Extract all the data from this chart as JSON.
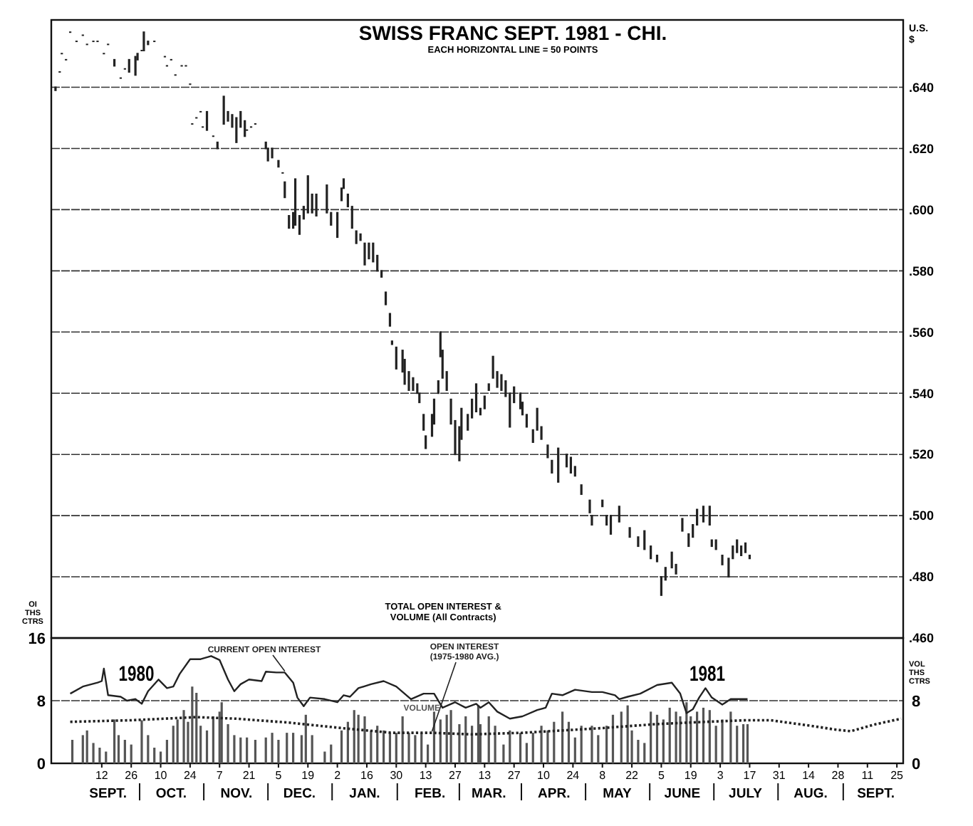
{
  "chart_data": [
    {
      "type": "candlestick",
      "title": "SWISS FRANC SEPT. 1981 - CHI.",
      "subtitle": "EACH HORIZONTAL LINE = 50 POINTS",
      "ylabel": "U.S. $",
      "color": "#222222",
      "xlim": [
        "1980-08-19",
        "1981-09-28"
      ],
      "ylim": [
        0.46,
        0.662
      ],
      "yticks": [
        {
          "value": 0.46,
          "label": ".460"
        },
        {
          "value": 0.48,
          "label": ".480"
        },
        {
          "value": 0.5,
          "label": ".500"
        },
        {
          "value": 0.52,
          "label": ".520"
        },
        {
          "value": 0.54,
          "label": ".540"
        },
        {
          "value": 0.56,
          "label": ".560"
        },
        {
          "value": 0.58,
          "label": ".580"
        },
        {
          "value": 0.6,
          "label": ".600"
        },
        {
          "value": 0.62,
          "label": ".620"
        },
        {
          "value": 0.64,
          "label": ".640"
        }
      ],
      "grid": "y",
      "tick_labels": "y",
      "x": [
        "1980-08-21",
        "1980-08-23",
        "1980-08-24",
        "1980-08-26",
        "1980-08-28",
        "1980-08-31",
        "1980-09-03",
        "1980-09-05",
        "1980-09-08",
        "1980-09-10",
        "1980-09-13",
        "1980-09-15",
        "1980-09-18",
        "1980-09-21",
        "1980-09-23",
        "1980-09-25",
        "1980-09-28",
        "1980-09-29",
        "1980-10-01",
        "1980-10-02",
        "1980-10-04",
        "1980-10-07",
        "1980-10-12",
        "1980-10-13",
        "1980-10-15",
        "1980-10-17",
        "1980-10-20",
        "1980-10-22",
        "1980-10-24",
        "1980-10-25",
        "1980-10-27",
        "1980-10-29",
        "1980-10-30",
        "1980-11-01",
        "1980-11-04",
        "1980-11-06",
        "1980-11-09",
        "1980-11-11",
        "1980-11-13",
        "1980-11-15",
        "1980-11-17",
        "1980-11-19",
        "1980-11-20",
        "1980-11-22",
        "1980-11-24",
        "1980-11-29",
        "1980-11-30",
        "1980-12-02",
        "1980-12-05",
        "1980-12-07",
        "1980-12-08",
        "1980-12-10",
        "1980-12-12",
        "1980-12-13",
        "1980-12-15",
        "1980-12-17",
        "1980-12-19",
        "1980-12-21",
        "1980-12-23",
        "1980-12-28",
        "1980-12-30",
        "1981-01-02",
        "1981-01-04",
        "1981-01-05",
        "1981-01-07",
        "1981-01-09",
        "1981-01-11",
        "1981-01-13",
        "1981-01-15",
        "1981-01-17",
        "1981-01-19",
        "1981-01-21",
        "1981-01-23",
        "1981-01-25",
        "1981-01-27",
        "1981-01-28",
        "1981-01-30",
        "1981-02-02",
        "1981-02-03",
        "1981-02-05",
        "1981-02-07",
        "1981-02-09",
        "1981-02-10",
        "1981-02-12",
        "1981-02-13",
        "1981-02-16",
        "1981-02-17",
        "1981-02-19",
        "1981-02-20",
        "1981-02-21",
        "1981-02-23",
        "1981-02-25",
        "1981-02-27",
        "1981-03-01",
        "1981-03-02",
        "1981-03-05",
        "1981-03-07",
        "1981-03-09",
        "1981-03-11",
        "1981-03-13",
        "1981-03-15",
        "1981-03-17",
        "1981-03-19",
        "1981-03-21",
        "1981-03-23",
        "1981-03-25",
        "1981-03-27",
        "1981-03-30",
        "1981-03-31",
        "1981-04-02",
        "1981-04-05",
        "1981-04-07",
        "1981-04-09",
        "1981-04-12",
        "1981-04-14",
        "1981-04-17",
        "1981-04-21",
        "1981-04-23",
        "1981-04-25",
        "1981-04-28",
        "1981-05-02",
        "1981-05-03",
        "1981-05-08",
        "1981-05-10",
        "1981-05-12",
        "1981-05-16",
        "1981-05-21",
        "1981-05-25",
        "1981-05-28",
        "1981-05-31",
        "1981-06-03",
        "1981-06-05",
        "1981-06-07",
        "1981-06-10",
        "1981-06-12",
        "1981-06-15",
        "1981-06-18",
        "1981-06-20",
        "1981-06-22",
        "1981-06-25",
        "1981-06-28",
        "1981-06-29",
        "1981-07-01",
        "1981-07-04",
        "1981-07-07",
        "1981-07-09",
        "1981-07-11",
        "1981-07-13",
        "1981-07-15",
        "1981-07-17"
      ],
      "ohlc": [
        [
          0.64,
          0.64,
          0.639,
          0.639
        ],
        [
          0.645,
          0.645,
          0.645,
          0.645
        ],
        [
          0.651,
          0.651,
          0.651,
          0.651
        ],
        [
          0.649,
          0.649,
          0.649,
          0.649
        ],
        [
          0.658,
          0.658,
          0.658,
          0.658
        ],
        [
          0.655,
          0.655,
          0.655,
          0.655
        ],
        [
          0.657,
          0.657,
          0.657,
          0.657
        ],
        [
          0.654,
          0.654,
          0.654,
          0.654
        ],
        [
          0.655,
          0.655,
          0.655,
          0.655
        ],
        [
          0.655,
          0.655,
          0.655,
          0.655
        ],
        [
          0.651,
          0.651,
          0.651,
          0.651
        ],
        [
          0.654,
          0.654,
          0.654,
          0.654
        ],
        [
          0.649,
          0.649,
          0.647,
          0.647
        ],
        [
          0.643,
          0.643,
          0.643,
          0.643
        ],
        [
          0.646,
          0.646,
          0.646,
          0.646
        ],
        [
          0.649,
          0.649,
          0.645,
          0.645
        ],
        [
          0.65,
          0.65,
          0.644,
          0.644
        ],
        [
          0.651,
          0.651,
          0.649,
          0.649
        ],
        [
          0.652,
          0.652,
          0.652,
          0.652
        ],
        [
          0.658,
          0.658,
          0.652,
          0.652
        ],
        [
          0.655,
          0.655,
          0.654,
          0.654
        ],
        [
          0.655,
          0.655,
          0.655,
          0.655
        ],
        [
          0.65,
          0.65,
          0.65,
          0.65
        ],
        [
          0.647,
          0.647,
          0.647,
          0.647
        ],
        [
          0.649,
          0.649,
          0.649,
          0.649
        ],
        [
          0.644,
          0.644,
          0.644,
          0.644
        ],
        [
          0.647,
          0.647,
          0.647,
          0.647
        ],
        [
          0.647,
          0.647,
          0.647,
          0.647
        ],
        [
          0.641,
          0.641,
          0.641,
          0.641
        ],
        [
          0.628,
          0.628,
          0.628,
          0.628
        ],
        [
          0.63,
          0.63,
          0.63,
          0.63
        ],
        [
          0.632,
          0.632,
          0.632,
          0.632
        ],
        [
          0.627,
          0.627,
          0.627,
          0.627
        ],
        [
          0.632,
          0.632,
          0.626,
          0.626
        ],
        [
          0.624,
          0.624,
          0.624,
          0.624
        ],
        [
          0.622,
          0.622,
          0.62,
          0.62
        ],
        [
          0.637,
          0.637,
          0.628,
          0.628
        ],
        [
          0.632,
          0.632,
          0.629,
          0.629
        ],
        [
          0.631,
          0.631,
          0.627,
          0.627
        ],
        [
          0.63,
          0.63,
          0.622,
          0.622
        ],
        [
          0.632,
          0.632,
          0.627,
          0.627
        ],
        [
          0.629,
          0.629,
          0.624,
          0.624
        ],
        [
          0.626,
          0.626,
          0.626,
          0.626
        ],
        [
          0.627,
          0.627,
          0.627,
          0.627
        ],
        [
          0.628,
          0.628,
          0.628,
          0.628
        ],
        [
          0.622,
          0.622,
          0.62,
          0.62
        ],
        [
          0.62,
          0.62,
          0.616,
          0.616
        ],
        [
          0.62,
          0.62,
          0.617,
          0.617
        ],
        [
          0.616,
          0.616,
          0.614,
          0.614
        ],
        [
          0.612,
          0.612,
          0.612,
          0.612
        ],
        [
          0.609,
          0.609,
          0.604,
          0.604
        ],
        [
          0.598,
          0.598,
          0.594,
          0.594
        ],
        [
          0.599,
          0.599,
          0.594,
          0.594
        ],
        [
          0.61,
          0.61,
          0.595,
          0.595
        ],
        [
          0.598,
          0.598,
          0.592,
          0.592
        ],
        [
          0.601,
          0.601,
          0.597,
          0.597
        ],
        [
          0.611,
          0.611,
          0.599,
          0.599
        ],
        [
          0.605,
          0.605,
          0.599,
          0.599
        ],
        [
          0.605,
          0.605,
          0.598,
          0.598
        ],
        [
          0.608,
          0.608,
          0.599,
          0.599
        ],
        [
          0.599,
          0.599,
          0.595,
          0.595
        ],
        [
          0.599,
          0.599,
          0.591,
          0.591
        ],
        [
          0.607,
          0.607,
          0.603,
          0.603
        ],
        [
          0.61,
          0.61,
          0.607,
          0.607
        ],
        [
          0.605,
          0.605,
          0.601,
          0.601
        ],
        [
          0.601,
          0.601,
          0.594,
          0.594
        ],
        [
          0.593,
          0.593,
          0.589,
          0.589
        ],
        [
          0.592,
          0.592,
          0.59,
          0.59
        ],
        [
          0.589,
          0.589,
          0.582,
          0.582
        ],
        [
          0.589,
          0.589,
          0.584,
          0.584
        ],
        [
          0.589,
          0.589,
          0.583,
          0.583
        ],
        [
          0.585,
          0.585,
          0.58,
          0.58
        ],
        [
          0.58,
          0.58,
          0.578,
          0.578
        ],
        [
          0.573,
          0.573,
          0.569,
          0.569
        ],
        [
          0.566,
          0.566,
          0.562,
          0.562
        ],
        [
          0.557,
          0.557,
          0.556,
          0.556
        ],
        [
          0.555,
          0.555,
          0.548,
          0.548
        ],
        [
          0.554,
          0.554,
          0.547,
          0.547
        ],
        [
          0.551,
          0.551,
          0.543,
          0.543
        ],
        [
          0.547,
          0.547,
          0.541,
          0.541
        ],
        [
          0.545,
          0.545,
          0.541,
          0.541
        ],
        [
          0.543,
          0.543,
          0.54,
          0.54
        ],
        [
          0.54,
          0.54,
          0.537,
          0.537
        ],
        [
          0.533,
          0.533,
          0.528,
          0.528
        ],
        [
          0.526,
          0.526,
          0.522,
          0.522
        ],
        [
          0.533,
          0.533,
          0.526,
          0.526
        ],
        [
          0.538,
          0.538,
          0.53,
          0.53
        ],
        [
          0.544,
          0.544,
          0.54,
          0.54
        ],
        [
          0.56,
          0.56,
          0.552,
          0.552
        ],
        [
          0.554,
          0.554,
          0.545,
          0.545
        ],
        [
          0.547,
          0.547,
          0.541,
          0.541
        ],
        [
          0.538,
          0.538,
          0.53,
          0.53
        ],
        [
          0.531,
          0.531,
          0.52,
          0.52
        ],
        [
          0.529,
          0.529,
          0.518,
          0.518
        ],
        [
          0.535,
          0.535,
          0.525,
          0.525
        ],
        [
          0.533,
          0.533,
          0.528,
          0.528
        ],
        [
          0.538,
          0.538,
          0.532,
          0.532
        ],
        [
          0.543,
          0.543,
          0.534,
          0.534
        ],
        [
          0.535,
          0.535,
          0.533,
          0.533
        ],
        [
          0.539,
          0.539,
          0.535,
          0.535
        ],
        [
          0.543,
          0.543,
          0.541,
          0.541
        ],
        [
          0.552,
          0.552,
          0.545,
          0.545
        ],
        [
          0.547,
          0.547,
          0.542,
          0.542
        ],
        [
          0.546,
          0.546,
          0.541,
          0.541
        ],
        [
          0.544,
          0.544,
          0.539,
          0.539
        ],
        [
          0.54,
          0.54,
          0.529,
          0.529
        ],
        [
          0.542,
          0.542,
          0.537,
          0.537
        ],
        [
          0.54,
          0.54,
          0.535,
          0.535
        ],
        [
          0.537,
          0.537,
          0.533,
          0.533
        ],
        [
          0.533,
          0.533,
          0.529,
          0.529
        ],
        [
          0.528,
          0.528,
          0.524,
          0.524
        ],
        [
          0.535,
          0.535,
          0.528,
          0.528
        ],
        [
          0.529,
          0.529,
          0.525,
          0.525
        ],
        [
          0.523,
          0.523,
          0.519,
          0.519
        ],
        [
          0.518,
          0.518,
          0.514,
          0.514
        ],
        [
          0.522,
          0.522,
          0.511,
          0.511
        ],
        [
          0.52,
          0.52,
          0.516,
          0.516
        ],
        [
          0.519,
          0.519,
          0.514,
          0.514
        ],
        [
          0.516,
          0.516,
          0.513,
          0.513
        ],
        [
          0.51,
          0.51,
          0.507,
          0.507
        ],
        [
          0.505,
          0.505,
          0.501,
          0.501
        ],
        [
          0.5,
          0.5,
          0.497,
          0.497
        ],
        [
          0.505,
          0.505,
          0.503,
          0.503
        ],
        [
          0.5,
          0.5,
          0.497,
          0.497
        ],
        [
          0.5,
          0.5,
          0.494,
          0.494
        ],
        [
          0.503,
          0.503,
          0.498,
          0.498
        ],
        [
          0.496,
          0.496,
          0.493,
          0.493
        ],
        [
          0.493,
          0.493,
          0.49,
          0.49
        ],
        [
          0.495,
          0.495,
          0.489,
          0.489
        ],
        [
          0.49,
          0.49,
          0.486,
          0.486
        ],
        [
          0.487,
          0.487,
          0.485,
          0.485
        ],
        [
          0.48,
          0.48,
          0.474,
          0.474
        ],
        [
          0.483,
          0.483,
          0.479,
          0.479
        ],
        [
          0.488,
          0.488,
          0.483,
          0.483
        ],
        [
          0.484,
          0.484,
          0.481,
          0.481
        ],
        [
          0.499,
          0.499,
          0.495,
          0.495
        ],
        [
          0.494,
          0.494,
          0.49,
          0.49
        ],
        [
          0.497,
          0.497,
          0.493,
          0.493
        ],
        [
          0.502,
          0.502,
          0.497,
          0.497
        ],
        [
          0.503,
          0.503,
          0.498,
          0.498
        ],
        [
          0.503,
          0.503,
          0.497,
          0.497
        ],
        [
          0.492,
          0.492,
          0.49,
          0.49
        ],
        [
          0.492,
          0.492,
          0.489,
          0.489
        ],
        [
          0.487,
          0.487,
          0.484,
          0.484
        ],
        [
          0.486,
          0.486,
          0.48,
          0.48
        ],
        [
          0.49,
          0.49,
          0.486,
          0.486
        ],
        [
          0.492,
          0.492,
          0.488,
          0.488
        ],
        [
          0.49,
          0.49,
          0.487,
          0.487
        ],
        [
          0.491,
          0.491,
          0.488,
          0.488
        ],
        [
          0.487,
          0.487,
          0.486,
          0.486
        ]
      ]
    },
    {
      "type": "line",
      "ylabel": "OI THS CTRS",
      "y2label": "VOL THS CTRS",
      "xlim": [
        "1980-08-19",
        "1981-09-28"
      ],
      "ylim": [
        0,
        16
      ],
      "yticks": [
        0,
        8,
        16
      ],
      "y2lim": [
        0,
        16
      ],
      "y2ticks": [
        0,
        8
      ],
      "grid": "y",
      "xticks": [
        {
          "value": "1980-09-12",
          "label": "12"
        },
        {
          "value": "1980-09-26",
          "label": "26"
        },
        {
          "value": "1980-10-10",
          "label": "10"
        },
        {
          "value": "1980-10-24",
          "label": "24"
        },
        {
          "value": "1980-11-07",
          "label": "7"
        },
        {
          "value": "1980-11-21",
          "label": "21"
        },
        {
          "value": "1980-12-05",
          "label": "5"
        },
        {
          "value": "1980-12-19",
          "label": "19"
        },
        {
          "value": "1981-01-02",
          "label": "2"
        },
        {
          "value": "1981-01-16",
          "label": "16"
        },
        {
          "value": "1981-01-30",
          "label": "30"
        },
        {
          "value": "1981-02-13",
          "label": "13"
        },
        {
          "value": "1981-02-27",
          "label": "27"
        },
        {
          "value": "1981-03-13",
          "label": "13"
        },
        {
          "value": "1981-03-27",
          "label": "27"
        },
        {
          "value": "1981-04-10",
          "label": "10"
        },
        {
          "value": "1981-04-24",
          "label": "24"
        },
        {
          "value": "1981-05-08",
          "label": "8"
        },
        {
          "value": "1981-05-22",
          "label": "22"
        },
        {
          "value": "1981-06-05",
          "label": "5"
        },
        {
          "value": "1981-06-19",
          "label": "19"
        },
        {
          "value": "1981-07-03",
          "label": "3"
        },
        {
          "value": "1981-07-17",
          "label": "17"
        },
        {
          "value": "1981-07-31",
          "label": "31"
        },
        {
          "value": "1981-08-14",
          "label": "14"
        },
        {
          "value": "1981-08-28",
          "label": "28"
        },
        {
          "value": "1981-09-11",
          "label": "11"
        },
        {
          "value": "1981-09-25",
          "label": "25"
        }
      ],
      "x2lim": [
        "1980-08-19",
        "1981-09-28"
      ],
      "x2ticks": [
        {
          "value": "1980-09-15",
          "label": "SEPT."
        },
        {
          "value": "1980-10-15",
          "label": "OCT."
        },
        {
          "value": "1980-11-15",
          "label": "NOV."
        },
        {
          "value": "1980-12-15",
          "label": "DEC."
        },
        {
          "value": "1981-01-15",
          "label": "JAN."
        },
        {
          "value": "1981-02-15",
          "label": "FEB."
        },
        {
          "value": "1981-03-15",
          "label": "MAR."
        },
        {
          "value": "1981-04-15",
          "label": "APR."
        },
        {
          "value": "1981-05-15",
          "label": "MAY"
        },
        {
          "value": "1981-06-15",
          "label": "JUNE"
        },
        {
          "value": "1981-07-15",
          "label": "JULY"
        },
        {
          "value": "1981-08-15",
          "label": "AUG."
        },
        {
          "value": "1981-09-15",
          "label": "SEPT."
        }
      ],
      "annotations": [
        "TOTAL OPEN INTEREST & VOLUME (All Contracts)",
        "1980",
        "1981"
      ],
      "series": [
        {
          "name": "CURRENT OPEN INTEREST",
          "type": "line",
          "color": "#222222",
          "line_style": "solid",
          "x": [
            "1980-08-28",
            "1980-09-03",
            "1980-09-10",
            "1980-09-12",
            "1980-09-13",
            "1980-09-15",
            "1980-09-21",
            "1980-09-24",
            "1980-09-28",
            "1980-10-01",
            "1980-10-04",
            "1980-10-09",
            "1980-10-13",
            "1980-10-16",
            "1980-10-19",
            "1980-10-24",
            "1980-10-29",
            "1980-11-03",
            "1980-11-07",
            "1980-11-11",
            "1980-11-14",
            "1980-11-17",
            "1980-11-21",
            "1980-11-27",
            "1980-11-29",
            "1980-12-04",
            "1980-12-08",
            "1980-12-12",
            "1980-12-14",
            "1980-12-17",
            "1980-12-20",
            "1980-12-27",
            "1981-01-02",
            "1981-01-05",
            "1981-01-08",
            "1981-01-12",
            "1981-01-18",
            "1981-01-24",
            "1981-01-30",
            "1981-02-06",
            "1981-02-12",
            "1981-02-17",
            "1981-02-21",
            "1981-02-27",
            "1981-03-04",
            "1981-03-09",
            "1981-03-11",
            "1981-03-15",
            "1981-03-19",
            "1981-03-25",
            "1981-03-31",
            "1981-04-07",
            "1981-04-11",
            "1981-04-14",
            "1981-04-19",
            "1981-04-25",
            "1981-05-03",
            "1981-05-08",
            "1981-05-14",
            "1981-05-16",
            "1981-05-20",
            "1981-05-26",
            "1981-06-03",
            "1981-06-10",
            "1981-06-14",
            "1981-06-17",
            "1981-06-20",
            "1981-06-23",
            "1981-06-26",
            "1981-06-29",
            "1981-07-04",
            "1981-07-08",
            "1981-07-13",
            "1981-07-16"
          ],
          "values": [
            8.9,
            9.8,
            10.3,
            10.5,
            12.1,
            8.7,
            8.5,
            8.0,
            8.2,
            7.6,
            9.2,
            10.7,
            9.6,
            9.8,
            11.4,
            13.3,
            13.3,
            13.7,
            13.2,
            10.7,
            9.2,
            10.1,
            10.7,
            10.5,
            11.7,
            11.6,
            11.6,
            10.3,
            8.4,
            7.3,
            8.4,
            8.2,
            7.8,
            8.7,
            8.5,
            9.6,
            10.1,
            10.5,
            9.8,
            8.2,
            8.9,
            8.9,
            7.1,
            7.8,
            7.1,
            7.6,
            7.1,
            7.8,
            6.6,
            5.7,
            6.0,
            6.8,
            7.1,
            8.9,
            8.7,
            9.4,
            9.1,
            9.1,
            8.7,
            8.2,
            8.5,
            8.9,
            10.0,
            10.3,
            8.9,
            6.4,
            6.9,
            8.4,
            9.6,
            8.4,
            7.5,
            8.2,
            8.2,
            8.2
          ]
        },
        {
          "name": "OPEN INTEREST (1975-1980 AVG.)",
          "type": "line",
          "color": "#222222",
          "line_style": "dotted",
          "x": [
            "1980-08-28",
            "1980-09-26",
            "1980-10-27",
            "1980-11-15",
            "1980-12-10",
            "1981-01-04",
            "1981-01-28",
            "1981-02-16",
            "1981-03-07",
            "1981-03-31",
            "1981-05-08",
            "1981-06-02",
            "1981-06-26",
            "1981-07-15",
            "1981-07-27",
            "1981-08-15",
            "1981-08-27",
            "1981-09-03",
            "1981-09-15",
            "1981-09-27"
          ],
          "values": [
            5.3,
            5.5,
            5.9,
            5.7,
            5.2,
            4.5,
            3.9,
            3.9,
            3.7,
            3.9,
            4.5,
            5.0,
            5.3,
            5.5,
            5.5,
            4.8,
            4.3,
            4.1,
            5.0,
            5.7
          ]
        },
        {
          "name": "VOLUME",
          "type": "bar",
          "color": "#555555",
          "x": [
            "1980-08-29",
            "1980-09-03",
            "1980-09-05",
            "1980-09-08",
            "1980-09-11",
            "1980-09-14",
            "1980-09-18",
            "1980-09-20",
            "1980-09-23",
            "1980-09-26",
            "1980-10-01",
            "1980-10-04",
            "1980-10-07",
            "1980-10-10",
            "1980-10-13",
            "1980-10-16",
            "1980-10-18",
            "1980-10-21",
            "1980-10-23",
            "1980-10-25",
            "1980-10-27",
            "1980-10-29",
            "1980-11-01",
            "1980-11-04",
            "1980-11-07",
            "1980-11-08",
            "1980-11-11",
            "1980-11-14",
            "1980-11-17",
            "1980-11-20",
            "1980-11-24",
            "1980-11-29",
            "1980-12-02",
            "1980-12-05",
            "1980-12-09",
            "1980-12-12",
            "1980-12-16",
            "1980-12-18",
            "1980-12-21",
            "1980-12-27",
            "1980-12-30",
            "1981-01-04",
            "1981-01-07",
            "1981-01-10",
            "1981-01-12",
            "1981-01-15",
            "1981-01-18",
            "1981-01-21",
            "1981-01-24",
            "1981-01-27",
            "1981-01-30",
            "1981-02-02",
            "1981-02-05",
            "1981-02-08",
            "1981-02-11",
            "1981-02-14",
            "1981-02-17",
            "1981-02-20",
            "1981-02-23",
            "1981-02-25",
            "1981-03-01",
            "1981-03-04",
            "1981-03-07",
            "1981-03-10",
            "1981-03-11",
            "1981-03-15",
            "1981-03-18",
            "1981-03-22",
            "1981-03-25",
            "1981-03-30",
            "1981-04-02",
            "1981-04-05",
            "1981-04-09",
            "1981-04-12",
            "1981-04-15",
            "1981-04-19",
            "1981-04-22",
            "1981-04-25",
            "1981-04-28",
            "1981-05-03",
            "1981-05-06",
            "1981-05-10",
            "1981-05-13",
            "1981-05-17",
            "1981-05-20",
            "1981-05-22",
            "1981-05-25",
            "1981-05-28",
            "1981-05-31",
            "1981-06-03",
            "1981-06-06",
            "1981-06-09",
            "1981-06-12",
            "1981-06-14",
            "1981-06-17",
            "1981-06-19",
            "1981-06-22",
            "1981-06-25",
            "1981-06-28",
            "1981-07-01",
            "1981-07-04",
            "1981-07-08",
            "1981-07-11",
            "1981-07-14",
            "1981-07-16"
          ],
          "values": [
            3.0,
            3.6,
            4.2,
            2.6,
            2.0,
            1.5,
            5.6,
            3.6,
            3.0,
            2.4,
            5.5,
            3.6,
            2.0,
            1.5,
            3.0,
            4.8,
            5.6,
            6.8,
            5.3,
            9.8,
            9.0,
            4.8,
            4.2,
            6.0,
            6.6,
            7.8,
            5.0,
            3.6,
            3.3,
            3.3,
            3.0,
            3.3,
            3.9,
            3.0,
            3.9,
            3.9,
            3.6,
            6.2,
            3.6,
            1.5,
            2.4,
            4.2,
            5.3,
            6.8,
            6.2,
            6.0,
            4.2,
            4.8,
            4.2,
            3.9,
            3.9,
            6.0,
            3.9,
            3.6,
            3.9,
            2.4,
            6.6,
            5.6,
            6.2,
            6.8,
            5.0,
            6.0,
            4.8,
            7.4,
            5.0,
            6.0,
            4.8,
            2.4,
            4.2,
            3.9,
            2.6,
            3.9,
            4.8,
            4.2,
            5.3,
            6.6,
            5.3,
            3.3,
            4.8,
            4.8,
            3.6,
            4.8,
            6.2,
            6.6,
            7.4,
            4.2,
            3.0,
            2.6,
            6.6,
            6.2,
            5.6,
            7.1,
            6.6,
            6.0,
            7.8,
            6.0,
            6.6,
            7.1,
            6.8,
            4.8,
            5.6,
            6.6,
            4.8,
            5.0,
            5.0
          ]
        }
      ]
    }
  ]
}
